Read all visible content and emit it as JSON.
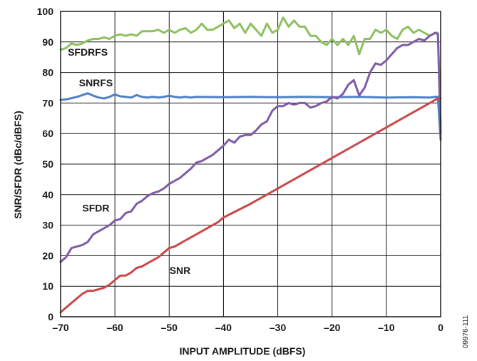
{
  "figure_id": "09976-111",
  "chart_data": {
    "type": "line",
    "xlabel": "INPUT AMPLITUDE (dBFS)",
    "ylabel": "SNR/SFDR (dBc/dBFS)",
    "xlim": [
      -70,
      0
    ],
    "ylim": [
      0,
      100
    ],
    "x_ticks": [
      -70,
      -60,
      -50,
      -40,
      -30,
      -20,
      -10,
      0
    ],
    "x_tick_labels": [
      "–70",
      "–60",
      "–50",
      "–40",
      "–30",
      "–20",
      "–10",
      "0"
    ],
    "y_ticks": [
      0,
      10,
      20,
      30,
      40,
      50,
      60,
      70,
      80,
      90,
      100
    ],
    "y_tick_labels": [
      "0",
      "10",
      "20",
      "30",
      "40",
      "50",
      "60",
      "70",
      "80",
      "90",
      "100"
    ],
    "grid": true,
    "legend": "none",
    "series": [
      {
        "name": "SFDRFS",
        "color": "#8dc060",
        "points": [
          [
            -70,
            87.5
          ],
          [
            -69,
            88
          ],
          [
            -68,
            89.5
          ],
          [
            -67,
            89
          ],
          [
            -66,
            89.5
          ],
          [
            -65,
            90.5
          ],
          [
            -64,
            91
          ],
          [
            -63,
            91
          ],
          [
            -62,
            91.5
          ],
          [
            -61,
            91
          ],
          [
            -60,
            92
          ],
          [
            -59,
            92.5
          ],
          [
            -58,
            92
          ],
          [
            -57,
            92.5
          ],
          [
            -56,
            92
          ],
          [
            -55,
            93.5
          ],
          [
            -54,
            93.5
          ],
          [
            -53,
            93.5
          ],
          [
            -52,
            94
          ],
          [
            -51,
            93
          ],
          [
            -50,
            94
          ],
          [
            -49,
            93
          ],
          [
            -48,
            94
          ],
          [
            -47,
            94.5
          ],
          [
            -46,
            93
          ],
          [
            -45,
            94
          ],
          [
            -44,
            96
          ],
          [
            -43,
            94
          ],
          [
            -42,
            94
          ],
          [
            -41,
            95
          ],
          [
            -40,
            96
          ],
          [
            -39,
            97
          ],
          [
            -38,
            94.5
          ],
          [
            -37,
            96
          ],
          [
            -36,
            93
          ],
          [
            -35,
            96
          ],
          [
            -34,
            94
          ],
          [
            -33,
            92
          ],
          [
            -32,
            96
          ],
          [
            -31,
            93
          ],
          [
            -30,
            94
          ],
          [
            -29,
            98
          ],
          [
            -28,
            95
          ],
          [
            -27,
            97
          ],
          [
            -26,
            95
          ],
          [
            -25,
            95
          ],
          [
            -24,
            92
          ],
          [
            -23,
            92
          ],
          [
            -22,
            90
          ],
          [
            -21,
            89
          ],
          [
            -20,
            91
          ],
          [
            -19,
            89
          ],
          [
            -18,
            91
          ],
          [
            -17,
            89
          ],
          [
            -16,
            92
          ],
          [
            -15,
            86
          ],
          [
            -14,
            91
          ],
          [
            -13,
            91
          ],
          [
            -12,
            94
          ],
          [
            -11,
            93
          ],
          [
            -10,
            94
          ],
          [
            -9,
            92
          ],
          [
            -8,
            91
          ],
          [
            -7,
            94
          ],
          [
            -6,
            95
          ],
          [
            -5,
            93
          ],
          [
            -4,
            94
          ],
          [
            -3,
            93
          ],
          [
            -2,
            92
          ],
          [
            -1,
            93
          ],
          [
            -0.5,
            93
          ],
          [
            0,
            63
          ]
        ]
      },
      {
        "name": "SNRFS",
        "color": "#4e81c4",
        "points": [
          [
            -70,
            71
          ],
          [
            -69,
            71.2
          ],
          [
            -68,
            71.6
          ],
          [
            -67,
            72
          ],
          [
            -66,
            72.6
          ],
          [
            -65,
            73.2
          ],
          [
            -64,
            72.4
          ],
          [
            -63,
            71.8
          ],
          [
            -62,
            71.5
          ],
          [
            -61,
            72
          ],
          [
            -60,
            72.8
          ],
          [
            -59,
            72.2
          ],
          [
            -58,
            72
          ],
          [
            -57,
            71.8
          ],
          [
            -56,
            72.6
          ],
          [
            -55,
            72
          ],
          [
            -54,
            71.8
          ],
          [
            -53,
            72
          ],
          [
            -52,
            71.8
          ],
          [
            -51,
            72
          ],
          [
            -50,
            72.4
          ],
          [
            -49,
            72
          ],
          [
            -48,
            71.8
          ],
          [
            -47,
            72
          ],
          [
            -46,
            71.8
          ],
          [
            -45,
            72
          ],
          [
            -40,
            71.9
          ],
          [
            -35,
            72
          ],
          [
            -30,
            71.9
          ],
          [
            -25,
            72
          ],
          [
            -20,
            71.9
          ],
          [
            -15,
            72
          ],
          [
            -10,
            71.8
          ],
          [
            -5,
            71.9
          ],
          [
            -2,
            71.8
          ],
          [
            -1,
            72
          ],
          [
            -0.5,
            72
          ],
          [
            0,
            58
          ]
        ]
      },
      {
        "name": "SFDR",
        "color": "#7e5ca8",
        "points": [
          [
            -70,
            18
          ],
          [
            -69,
            19.5
          ],
          [
            -68,
            22.5
          ],
          [
            -67,
            23
          ],
          [
            -66,
            23.5
          ],
          [
            -65,
            24.5
          ],
          [
            -64,
            27
          ],
          [
            -63,
            28
          ],
          [
            -62,
            29
          ],
          [
            -61,
            30
          ],
          [
            -60,
            31.5
          ],
          [
            -59,
            32
          ],
          [
            -58,
            34
          ],
          [
            -57,
            34.5
          ],
          [
            -56,
            37
          ],
          [
            -55,
            38
          ],
          [
            -54,
            39.5
          ],
          [
            -53,
            40.5
          ],
          [
            -52,
            41
          ],
          [
            -51,
            42
          ],
          [
            -50,
            43.5
          ],
          [
            -49,
            44.5
          ],
          [
            -48,
            45.5
          ],
          [
            -47,
            47
          ],
          [
            -46,
            48.5
          ],
          [
            -45,
            50.5
          ],
          [
            -44,
            51
          ],
          [
            -43,
            52
          ],
          [
            -42,
            53
          ],
          [
            -41,
            54.5
          ],
          [
            -40,
            56
          ],
          [
            -39,
            58
          ],
          [
            -38,
            57
          ],
          [
            -37,
            59
          ],
          [
            -36,
            59.5
          ],
          [
            -35,
            59.5
          ],
          [
            -34,
            61
          ],
          [
            -33,
            63
          ],
          [
            -32,
            64
          ],
          [
            -31,
            67.5
          ],
          [
            -30,
            69
          ],
          [
            -29,
            69
          ],
          [
            -28,
            70
          ],
          [
            -27,
            69.5
          ],
          [
            -26,
            70
          ],
          [
            -25,
            70
          ],
          [
            -24,
            68.5
          ],
          [
            -23,
            69
          ],
          [
            -22,
            70
          ],
          [
            -21,
            70.5
          ],
          [
            -20,
            72
          ],
          [
            -19,
            71.5
          ],
          [
            -18,
            73
          ],
          [
            -17,
            76
          ],
          [
            -16,
            77.5
          ],
          [
            -15,
            72.5
          ],
          [
            -14,
            75
          ],
          [
            -13,
            80
          ],
          [
            -12,
            83
          ],
          [
            -11,
            82.5
          ],
          [
            -10,
            84
          ],
          [
            -9,
            86
          ],
          [
            -8,
            88
          ],
          [
            -7,
            89
          ],
          [
            -6,
            89
          ],
          [
            -5,
            90
          ],
          [
            -4,
            91
          ],
          [
            -3,
            90.5
          ],
          [
            -2,
            92
          ],
          [
            -1,
            93
          ],
          [
            -0.5,
            92.5
          ],
          [
            0,
            60
          ]
        ]
      },
      {
        "name": "SNR",
        "color": "#c8494a",
        "points": [
          [
            -70,
            1.5
          ],
          [
            -69,
            3
          ],
          [
            -68,
            4.5
          ],
          [
            -67,
            6
          ],
          [
            -66,
            7.5
          ],
          [
            -65,
            8.5
          ],
          [
            -64,
            8.5
          ],
          [
            -63,
            9
          ],
          [
            -62,
            9.5
          ],
          [
            -61,
            10.5
          ],
          [
            -60,
            12
          ],
          [
            -59,
            13.5
          ],
          [
            -58,
            13.5
          ],
          [
            -57,
            14.5
          ],
          [
            -56,
            16
          ],
          [
            -55,
            16.5
          ],
          [
            -54,
            17.5
          ],
          [
            -53,
            18.5
          ],
          [
            -52,
            19.5
          ],
          [
            -51,
            21
          ],
          [
            -50,
            22.5
          ],
          [
            -49,
            23
          ],
          [
            -48,
            24
          ],
          [
            -47,
            25
          ],
          [
            -46,
            26
          ],
          [
            -45,
            27
          ],
          [
            -44,
            28
          ],
          [
            -43,
            29
          ],
          [
            -42,
            30
          ],
          [
            -41,
            31
          ],
          [
            -40,
            32.5
          ],
          [
            -35,
            37
          ],
          [
            -30,
            42
          ],
          [
            -25,
            47
          ],
          [
            -20,
            52
          ],
          [
            -15,
            57
          ],
          [
            -10,
            62
          ],
          [
            -5,
            67
          ],
          [
            -2,
            70
          ],
          [
            -1,
            71
          ],
          [
            -0.5,
            71.5
          ],
          [
            0,
            71.5
          ]
        ]
      }
    ],
    "annotations": [
      {
        "text": "SFDRFS",
        "x": -65,
        "y": 85.5
      },
      {
        "text": "SNRFS",
        "x": -63.5,
        "y": 75.5
      },
      {
        "text": "SFDR",
        "x": -63.5,
        "y": 34.5
      },
      {
        "text": "SNR",
        "x": -48,
        "y": 14
      }
    ]
  }
}
